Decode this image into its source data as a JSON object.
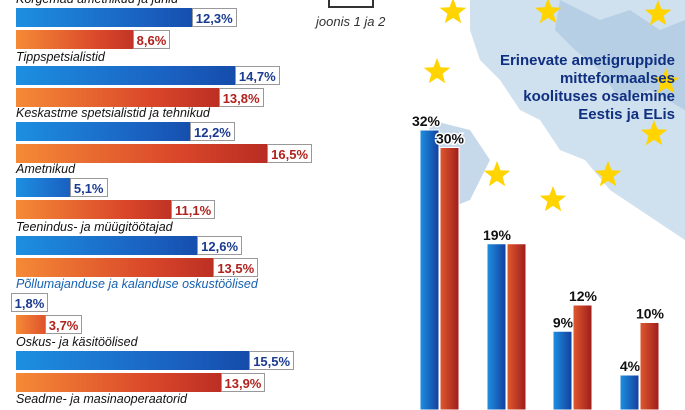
{
  "caption": "joonis 1 ja 2",
  "colors": {
    "eu_series": "#1a5fbf",
    "ee_series": "#c0392b",
    "title": "#0f2f80"
  },
  "chart_data": [
    {
      "type": "bar",
      "orientation": "horizontal",
      "categories": [
        "Kõrgemad ametnikud ja juhid",
        "Tippspetsialistid",
        "Keskastme spetsialistid ja tehnikud",
        "Ametnikud",
        "Teenindus- ja müügitöötajad",
        "Põllumajanduse ja kalanduse oskustöölised",
        "Oskus- ja käsitöölised",
        "Seadme- ja masinaoperaatorid"
      ],
      "series": [
        {
          "values": [
            12.3,
            14.7,
            12.2,
            5.1,
            12.6,
            1.8,
            15.5,
            null
          ],
          "labels": [
            "12,3%",
            "14,7%",
            "12,2%",
            "5,1%",
            "12,6%",
            "1,8%",
            "15,5%",
            ""
          ]
        },
        {
          "values": [
            8.6,
            13.8,
            16.5,
            11.1,
            13.5,
            3.7,
            13.9,
            null
          ],
          "labels": [
            "8,6%",
            "13,8%",
            "16,5%",
            "11,1%",
            "13,5%",
            "3,7%",
            "13,9%",
            ""
          ]
        }
      ],
      "xlim": [
        0,
        17
      ]
    },
    {
      "type": "bar",
      "title_lines": [
        "Erinevate ametigruppide",
        "mitteformaalses",
        "koolituses osalemine",
        "Eestis ja ELis"
      ],
      "categories": [
        "",
        "",
        "",
        ""
      ],
      "series": [
        {
          "values": [
            32,
            19,
            9,
            4
          ],
          "labels": [
            "32%",
            "19%",
            "9%",
            "4%"
          ]
        },
        {
          "values": [
            30,
            19,
            12,
            10
          ],
          "labels": [
            "30%",
            "",
            "12%",
            "10%"
          ]
        }
      ],
      "ylim": [
        0,
        35
      ]
    }
  ]
}
